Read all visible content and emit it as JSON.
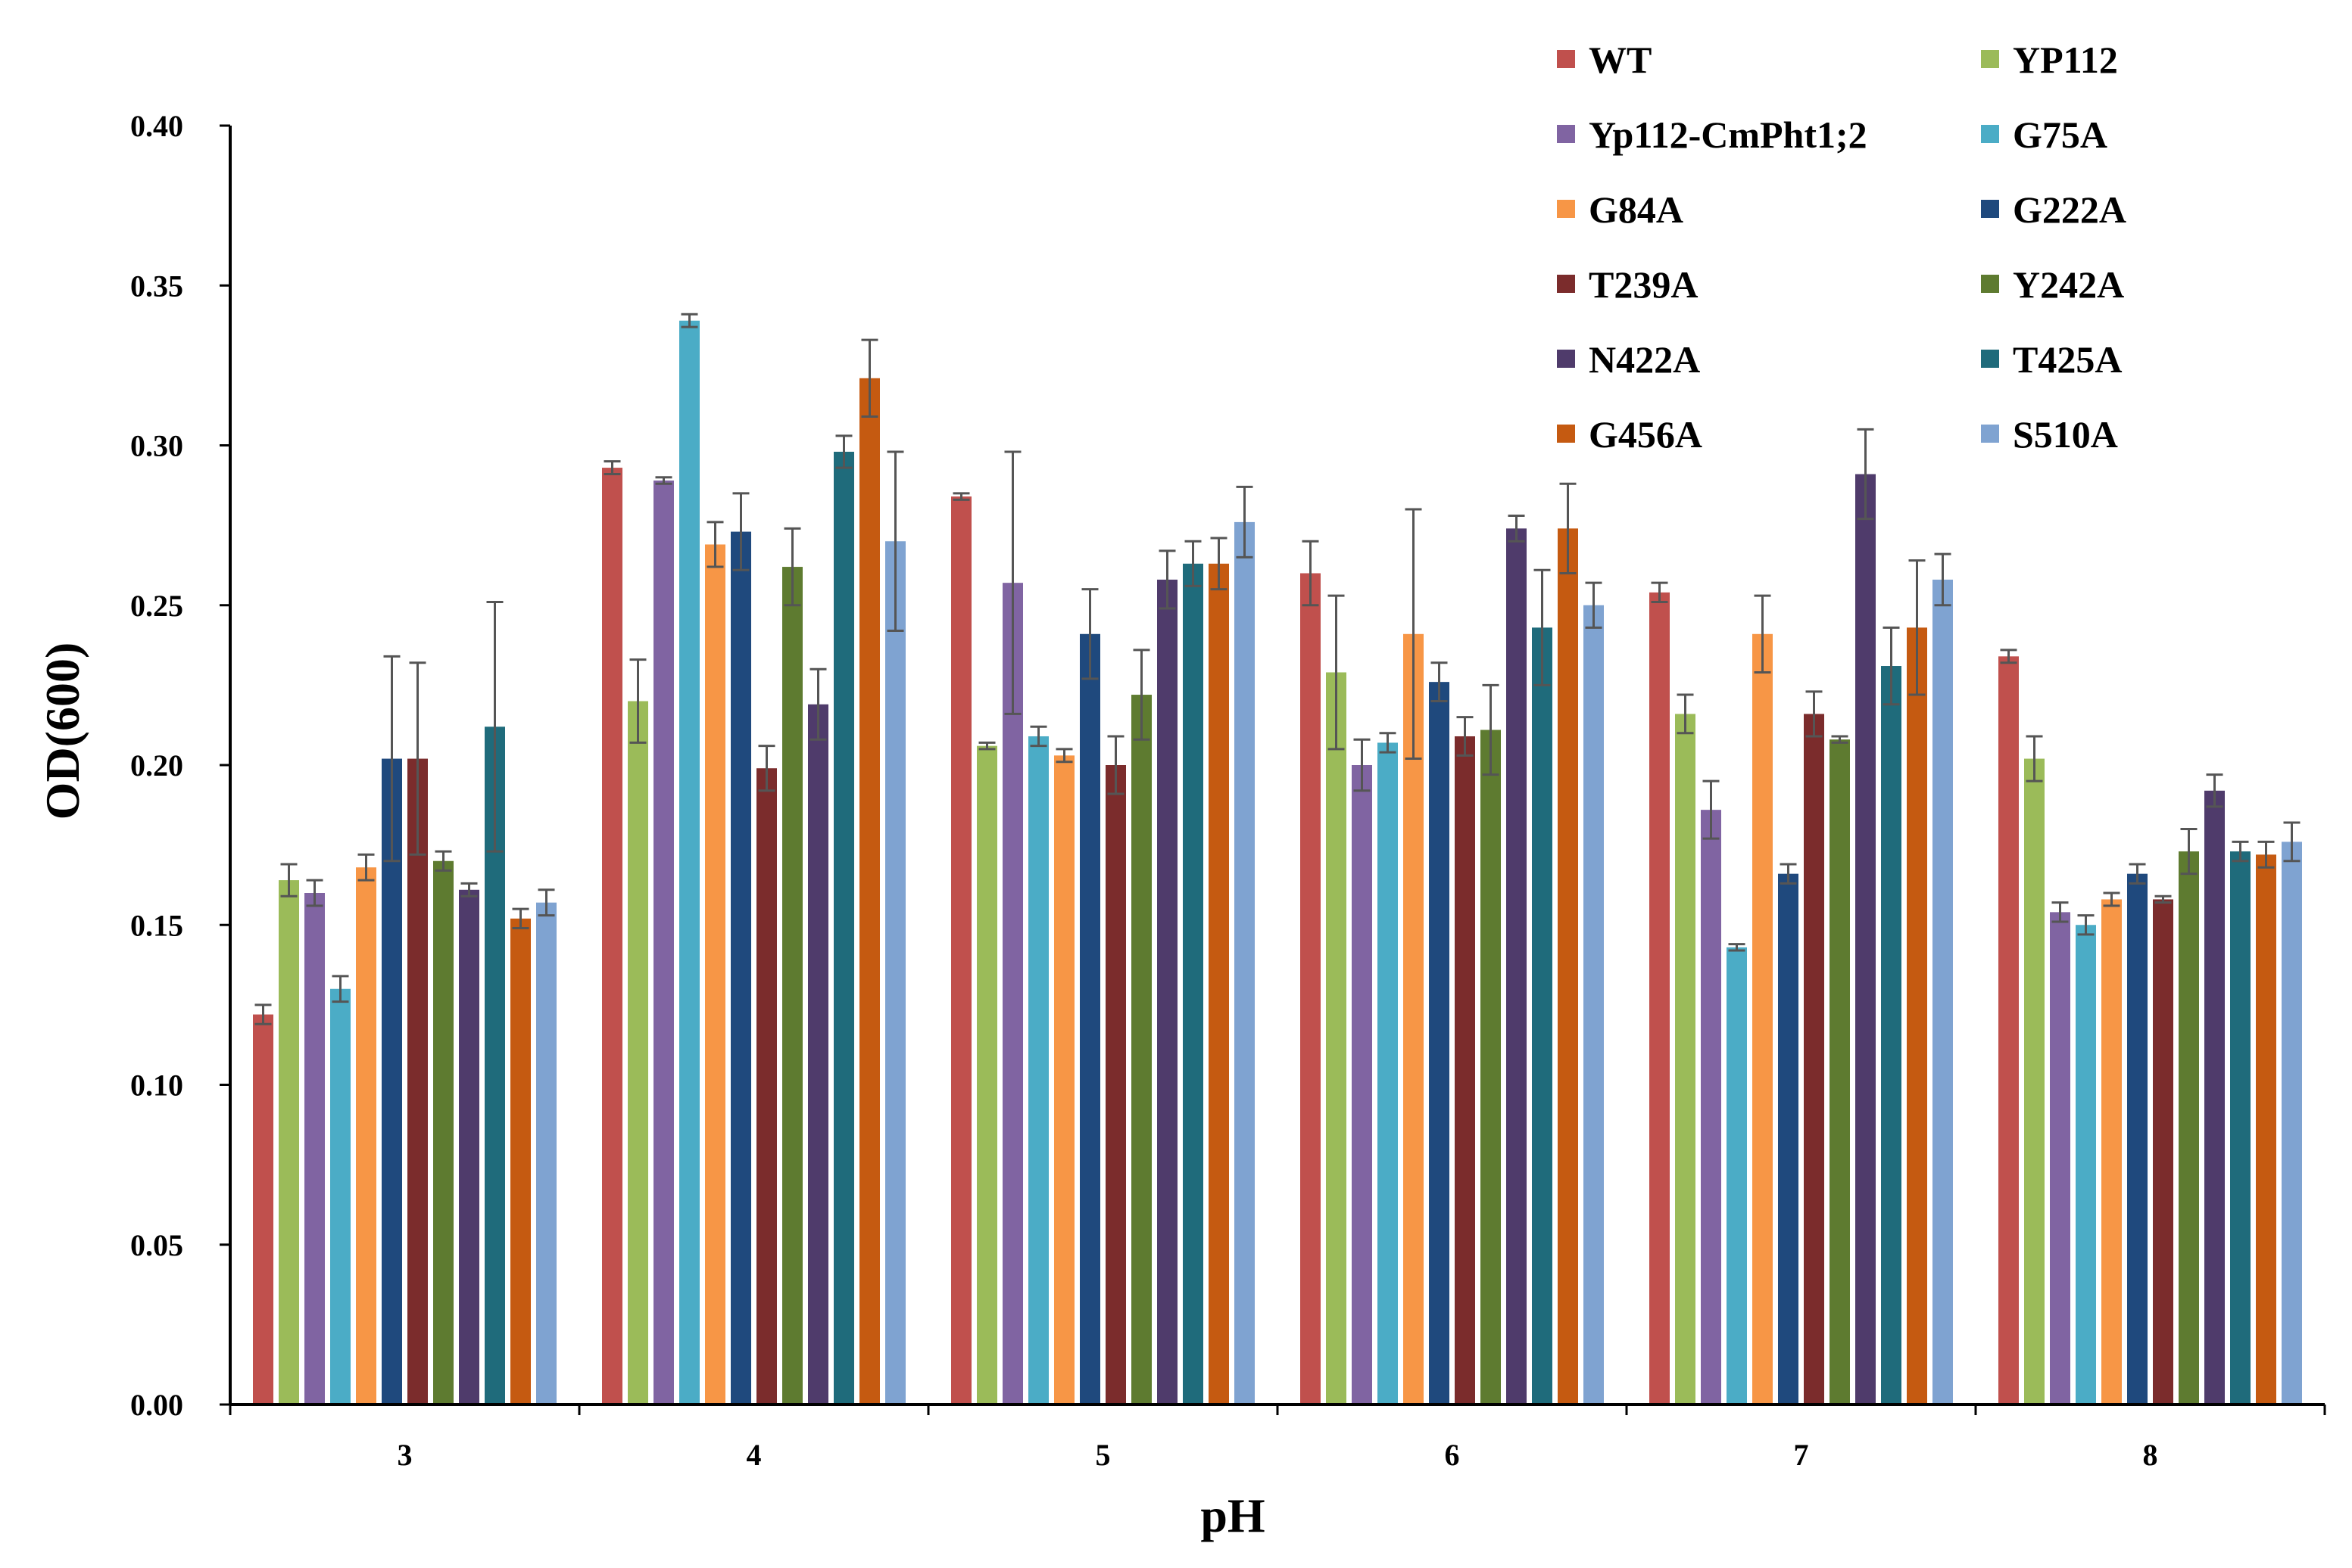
{
  "chart_data": {
    "type": "bar",
    "title": "",
    "xlabel": "pH",
    "ylabel": "OD(600)",
    "ylim": [
      0,
      0.4
    ],
    "yticks": [
      "0.00",
      "0.05",
      "0.10",
      "0.15",
      "0.20",
      "0.25",
      "0.30",
      "0.35",
      "0.40"
    ],
    "legend_position": "top-right",
    "categories": [
      "3",
      "4",
      "5",
      "6",
      "7",
      "8"
    ],
    "series": [
      {
        "name": "WT",
        "color": "#C0504D",
        "values": [
          0.122,
          0.293,
          0.284,
          0.26,
          0.254,
          0.234
        ],
        "errors": [
          0.003,
          0.002,
          0.001,
          0.01,
          0.003,
          0.002
        ]
      },
      {
        "name": "YP112",
        "color": "#9BBB59",
        "values": [
          0.164,
          0.22,
          0.206,
          0.229,
          0.216,
          0.202
        ],
        "errors": [
          0.005,
          0.013,
          0.001,
          0.024,
          0.006,
          0.007
        ]
      },
      {
        "name": "Yp112-CmPht1;2",
        "color": "#8064A2",
        "values": [
          0.16,
          0.289,
          0.257,
          0.2,
          0.186,
          0.154
        ],
        "errors": [
          0.004,
          0.001,
          0.041,
          0.008,
          0.009,
          0.003
        ]
      },
      {
        "name": "G75A",
        "color": "#4BACC6",
        "values": [
          0.13,
          0.339,
          0.209,
          0.207,
          0.143,
          0.15
        ],
        "errors": [
          0.004,
          0.002,
          0.003,
          0.003,
          0.001,
          0.003
        ]
      },
      {
        "name": "G84A",
        "color": "#F79646",
        "values": [
          0.168,
          0.269,
          0.203,
          0.241,
          0.241,
          0.158
        ],
        "errors": [
          0.004,
          0.007,
          0.002,
          0.039,
          0.012,
          0.002
        ]
      },
      {
        "name": "G222A",
        "color": "#1F497D",
        "values": [
          0.202,
          0.273,
          0.241,
          0.226,
          0.166,
          0.166
        ],
        "errors": [
          0.032,
          0.012,
          0.014,
          0.006,
          0.003,
          0.003
        ]
      },
      {
        "name": "T239A",
        "color": "#7B2C2C",
        "values": [
          0.202,
          0.199,
          0.2,
          0.209,
          0.216,
          0.158
        ],
        "errors": [
          0.03,
          0.007,
          0.009,
          0.006,
          0.007,
          0.001
        ]
      },
      {
        "name": "Y242A",
        "color": "#5E7B30",
        "values": [
          0.17,
          0.262,
          0.222,
          0.211,
          0.208,
          0.173
        ],
        "errors": [
          0.003,
          0.012,
          0.014,
          0.014,
          0.001,
          0.007
        ]
      },
      {
        "name": "N422A",
        "color": "#4F3B6B",
        "values": [
          0.161,
          0.219,
          0.258,
          0.274,
          0.291,
          0.192
        ],
        "errors": [
          0.002,
          0.011,
          0.009,
          0.004,
          0.014,
          0.005
        ]
      },
      {
        "name": "T425A",
        "color": "#1F6B7B",
        "values": [
          0.212,
          0.298,
          0.263,
          0.243,
          0.231,
          0.173
        ],
        "errors": [
          0.039,
          0.005,
          0.007,
          0.018,
          0.012,
          0.003
        ]
      },
      {
        "name": "G456A",
        "color": "#C55A11",
        "values": [
          0.152,
          0.321,
          0.263,
          0.274,
          0.243,
          0.172
        ],
        "errors": [
          0.003,
          0.012,
          0.008,
          0.014,
          0.021,
          0.004
        ]
      },
      {
        "name": "S510A",
        "color": "#7FA3D1",
        "values": [
          0.157,
          0.27,
          0.276,
          0.25,
          0.258,
          0.176
        ],
        "errors": [
          0.004,
          0.028,
          0.011,
          0.007,
          0.008,
          0.006
        ]
      }
    ]
  }
}
